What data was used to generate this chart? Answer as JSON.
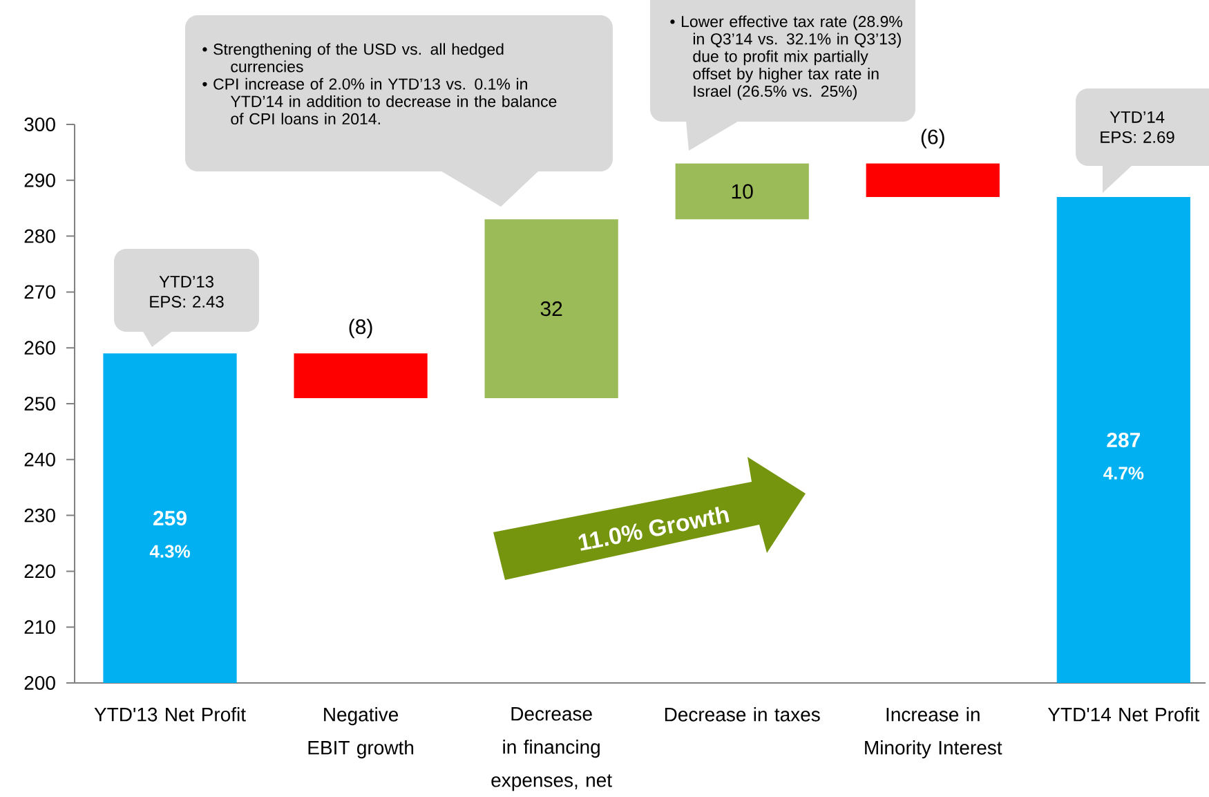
{
  "chart_data": {
    "type": "bar",
    "categories": [
      "YTD'13 Net Profit",
      "Negative EBIT growth",
      "Decrease in financing expenses, net",
      "Decrease in taxes",
      "Increase in Minority Interest",
      "YTD'14 Net Profit"
    ],
    "values": [
      59,
      -8,
      32,
      10,
      -6,
      87
    ],
    "base": [
      200,
      259,
      251,
      283,
      293,
      200
    ],
    "colors": [
      "#00b0f0",
      "#ff0000",
      "#9bbb59",
      "#9bbb59",
      "#ff0000",
      "#00b0f0"
    ],
    "value_labels": [
      "259",
      "(8)",
      "32",
      "10",
      "(6)",
      "287"
    ],
    "ylim": [
      200,
      300
    ],
    "yticks": [
      200,
      210,
      220,
      230,
      240,
      250,
      260,
      270,
      280,
      290,
      300
    ],
    "annotations": [
      "YTD’13 EPS: 2.43",
      "YTD’14 EPS: 2.69",
      "• Strengthening of the USD vs. all hedged currencies",
      "• CPI increase of 2.0% in YTD’13 vs. 0.1% in YTD’14 in addition to decrease in the balance of CPI loans in 2014.",
      "• Lower effective tax rate (28.9% in Q3’14 vs. 32.1% in Q3’13) due to profit mix partially offset by higher tax rate in Israel (26.5% vs. 25%)",
      "4.3%",
      "4.7%",
      "11.0% Growth"
    ]
  }
}
